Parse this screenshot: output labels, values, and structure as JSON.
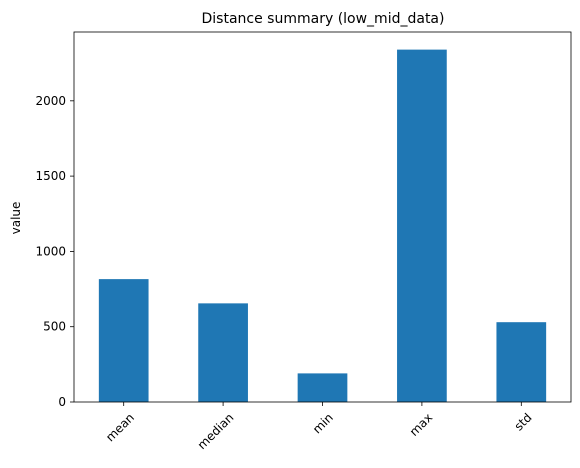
{
  "chart_data": {
    "type": "bar",
    "title": "Distance summary (low_mid_data)",
    "xlabel": "",
    "ylabel": "value",
    "categories": [
      "mean",
      "median",
      "min",
      "max",
      "std"
    ],
    "values": [
      816,
      655,
      190,
      2340,
      530
    ],
    "ylim": [
      0,
      2457
    ],
    "yticks": [
      0,
      500,
      1000,
      1500,
      2000
    ],
    "x_tick_rotation": 45,
    "grid": false,
    "legend": "none",
    "bar_color": "#1f77b4"
  }
}
